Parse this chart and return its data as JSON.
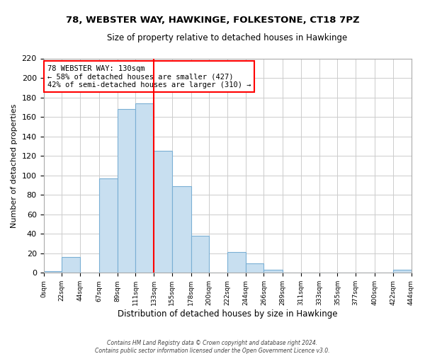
{
  "title1": "78, WEBSTER WAY, HAWKINGE, FOLKESTONE, CT18 7PZ",
  "title2": "Size of property relative to detached houses in Hawkinge",
  "xlabel": "Distribution of detached houses by size in Hawkinge",
  "ylabel": "Number of detached properties",
  "bin_edges": [
    0,
    22,
    44,
    67,
    89,
    111,
    133,
    155,
    178,
    200,
    222,
    244,
    266,
    289,
    311,
    333,
    355,
    377,
    400,
    422,
    444
  ],
  "bar_heights": [
    2,
    16,
    0,
    97,
    168,
    174,
    125,
    89,
    38,
    0,
    21,
    10,
    3,
    0,
    0,
    0,
    0,
    0,
    0,
    3
  ],
  "bar_color": "#c8dff0",
  "bar_edge_color": "#7aafd4",
  "vline_x": 133,
  "vline_color": "red",
  "ylim": [
    0,
    220
  ],
  "yticks": [
    0,
    20,
    40,
    60,
    80,
    100,
    120,
    140,
    160,
    180,
    200,
    220
  ],
  "xtick_labels": [
    "0sqm",
    "22sqm",
    "44sqm",
    "67sqm",
    "89sqm",
    "111sqm",
    "133sqm",
    "155sqm",
    "178sqm",
    "200sqm",
    "222sqm",
    "244sqm",
    "266sqm",
    "289sqm",
    "311sqm",
    "333sqm",
    "355sqm",
    "377sqm",
    "400sqm",
    "422sqm",
    "444sqm"
  ],
  "annotation_title": "78 WEBSTER WAY: 130sqm",
  "annotation_line1": "← 58% of detached houses are smaller (427)",
  "annotation_line2": "42% of semi-detached houses are larger (310) →",
  "footer1": "Contains HM Land Registry data © Crown copyright and database right 2024.",
  "footer2": "Contains public sector information licensed under the Open Government Licence v3.0.",
  "bg_color": "#ffffff",
  "grid_color": "#cccccc"
}
